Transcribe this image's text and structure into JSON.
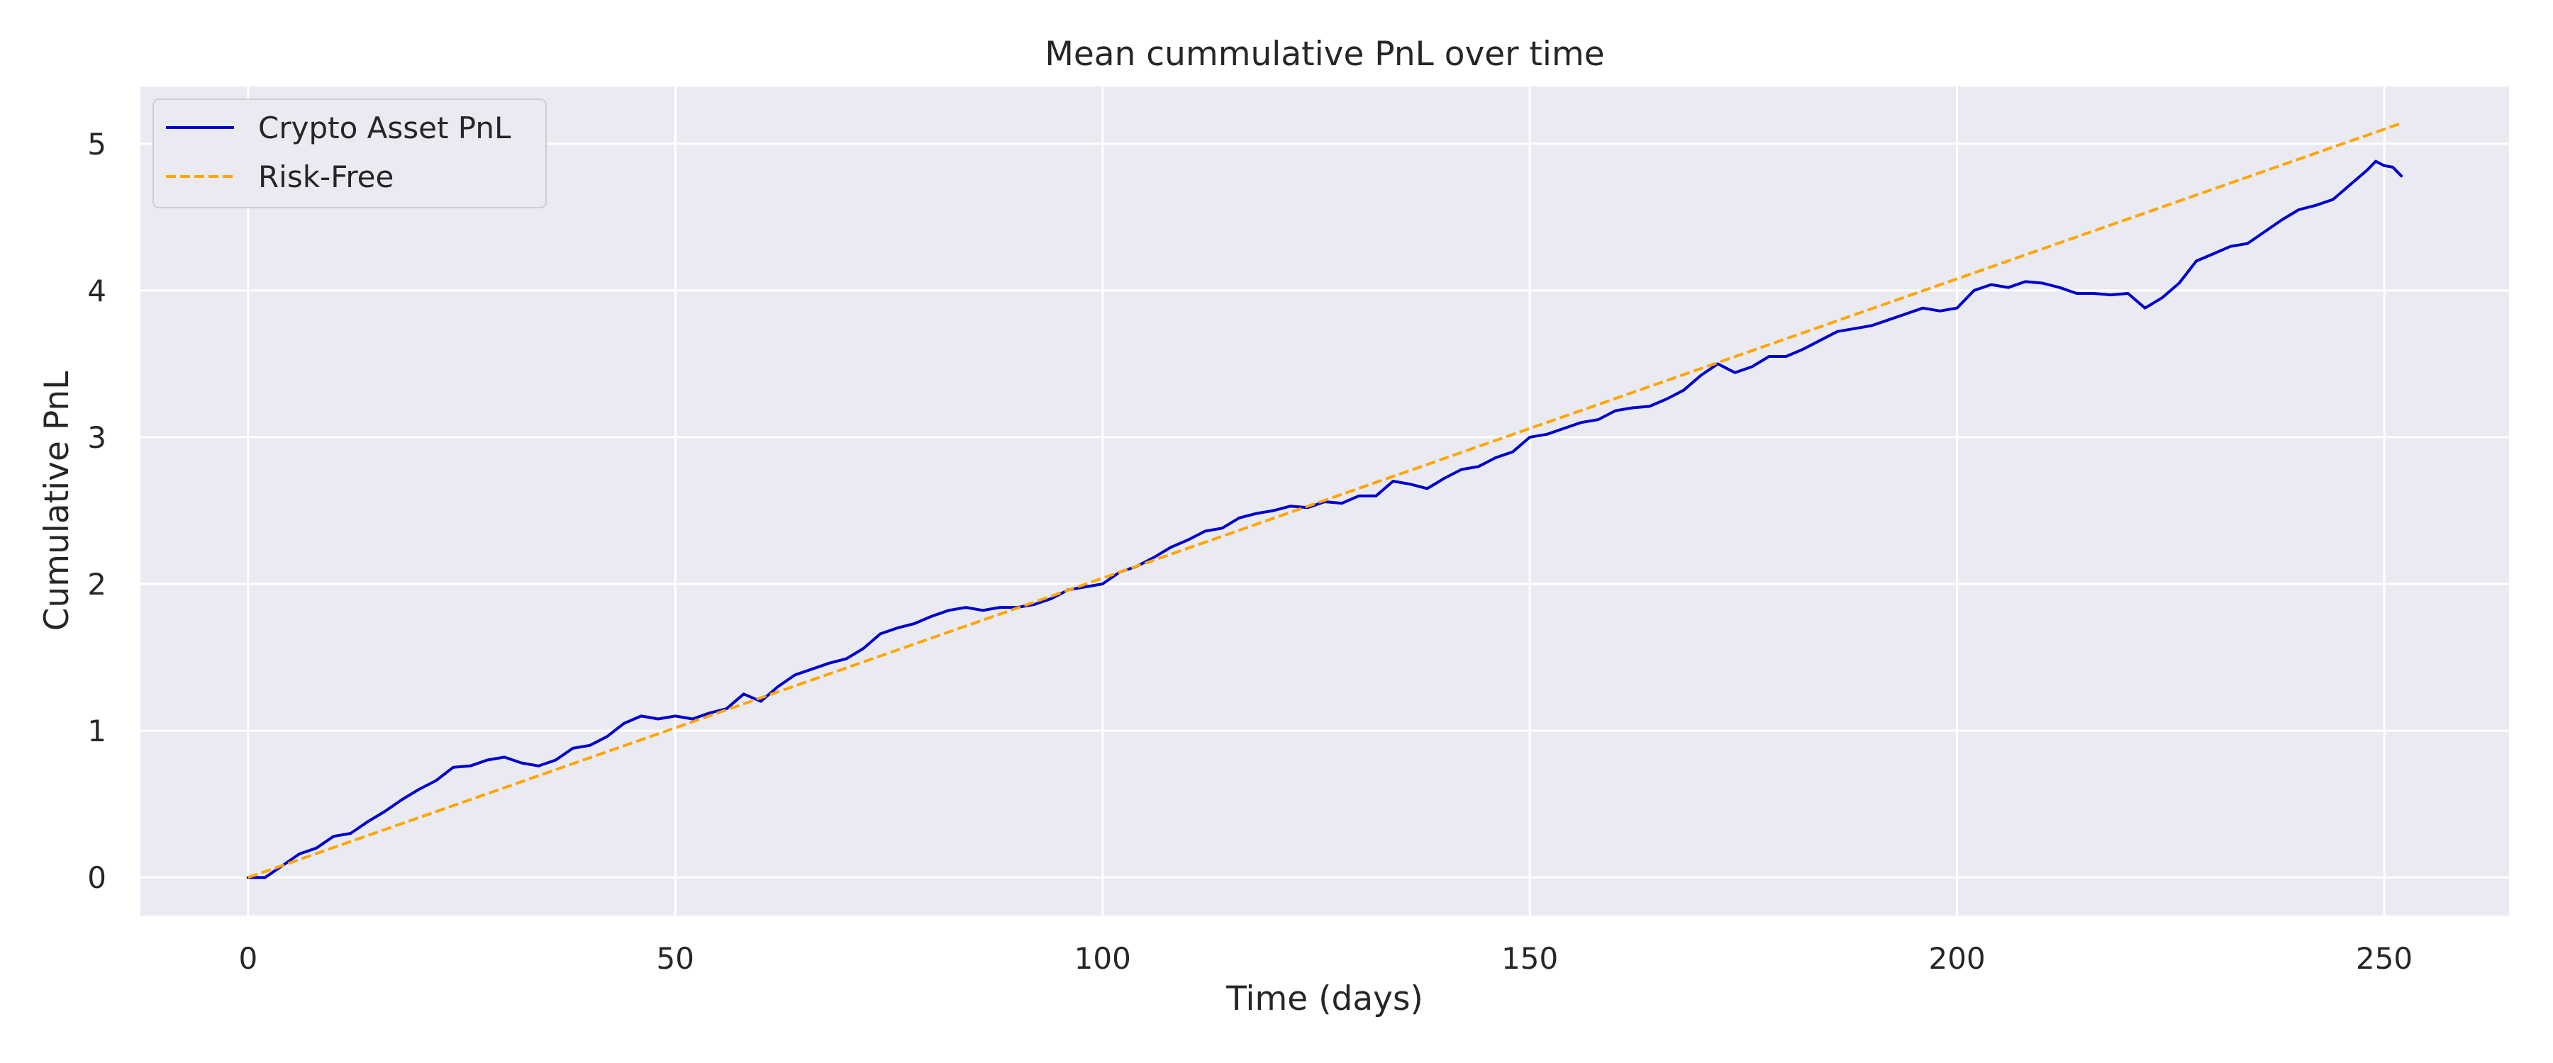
{
  "chart_data": {
    "type": "line",
    "title": "Mean cummulative PnL over time",
    "xlabel": "Time (days)",
    "ylabel": "Cumulative PnL",
    "xlim": [
      -12.6,
      264.6
    ],
    "ylim": [
      -0.26,
      5.39
    ],
    "xticks": [
      0,
      50,
      100,
      150,
      200,
      250
    ],
    "yticks": [
      0,
      1,
      2,
      3,
      4,
      5
    ],
    "xtick_labels": [
      "0",
      "50",
      "100",
      "150",
      "200",
      "250"
    ],
    "ytick_labels": [
      "0",
      "1",
      "2",
      "3",
      "4",
      "5"
    ],
    "grid": true,
    "legend_position": "top-left",
    "colors": {
      "background": "#eaeaf2",
      "grid": "#ffffff",
      "crypto": "#0000cc",
      "risk_free": "#ffa500"
    },
    "series": [
      {
        "name": "Crypto Asset PnL",
        "style": "solid",
        "x": [
          0,
          2,
          4,
          6,
          8,
          10,
          12,
          14,
          16,
          18,
          20,
          22,
          24,
          26,
          28,
          30,
          32,
          34,
          36,
          38,
          40,
          42,
          44,
          46,
          48,
          50,
          52,
          54,
          56,
          58,
          60,
          62,
          64,
          66,
          68,
          70,
          72,
          74,
          76,
          78,
          80,
          82,
          84,
          86,
          88,
          90,
          92,
          94,
          96,
          98,
          100,
          102,
          104,
          106,
          108,
          110,
          112,
          114,
          116,
          118,
          120,
          122,
          124,
          126,
          128,
          130,
          132,
          134,
          136,
          138,
          140,
          142,
          144,
          146,
          148,
          150,
          152,
          154,
          156,
          158,
          160,
          162,
          164,
          166,
          168,
          170,
          172,
          174,
          176,
          178,
          180,
          182,
          184,
          186,
          188,
          190,
          192,
          194,
          196,
          198,
          200,
          202,
          204,
          206,
          208,
          210,
          212,
          214,
          216,
          218,
          220,
          222,
          224,
          226,
          228,
          230,
          232,
          234,
          236,
          238,
          240,
          242,
          244,
          246,
          248,
          249,
          250,
          251,
          252
        ],
        "y": [
          0,
          0,
          0.08,
          0.16,
          0.2,
          0.28,
          0.3,
          0.38,
          0.45,
          0.53,
          0.6,
          0.66,
          0.75,
          0.76,
          0.8,
          0.82,
          0.78,
          0.76,
          0.8,
          0.88,
          0.9,
          0.96,
          1.05,
          1.1,
          1.08,
          1.1,
          1.08,
          1.12,
          1.15,
          1.25,
          1.2,
          1.3,
          1.38,
          1.42,
          1.46,
          1.49,
          1.56,
          1.66,
          1.7,
          1.73,
          1.78,
          1.82,
          1.84,
          1.82,
          1.84,
          1.84,
          1.86,
          1.9,
          1.96,
          1.98,
          2.0,
          2.08,
          2.12,
          2.18,
          2.25,
          2.3,
          2.36,
          2.38,
          2.45,
          2.48,
          2.5,
          2.53,
          2.52,
          2.56,
          2.55,
          2.6,
          2.6,
          2.7,
          2.68,
          2.65,
          2.72,
          2.78,
          2.8,
          2.86,
          2.9,
          3.0,
          3.02,
          3.06,
          3.1,
          3.12,
          3.18,
          3.2,
          3.21,
          3.26,
          3.32,
          3.42,
          3.5,
          3.44,
          3.48,
          3.55,
          3.55,
          3.6,
          3.66,
          3.72,
          3.74,
          3.76,
          3.8,
          3.84,
          3.88,
          3.86,
          3.88,
          4.0,
          4.04,
          4.02,
          4.06,
          4.05,
          4.02,
          3.98,
          3.98,
          3.97,
          3.98,
          3.88,
          3.95,
          4.05,
          4.2,
          4.25,
          4.3,
          4.32,
          4.4,
          4.48,
          4.55,
          4.58,
          4.62,
          4.72,
          4.82,
          4.88,
          4.85,
          4.84,
          4.78
        ]
      },
      {
        "name": "Risk-Free",
        "style": "dashed",
        "x": [
          0,
          252
        ],
        "y": [
          0,
          5.14
        ]
      }
    ]
  }
}
